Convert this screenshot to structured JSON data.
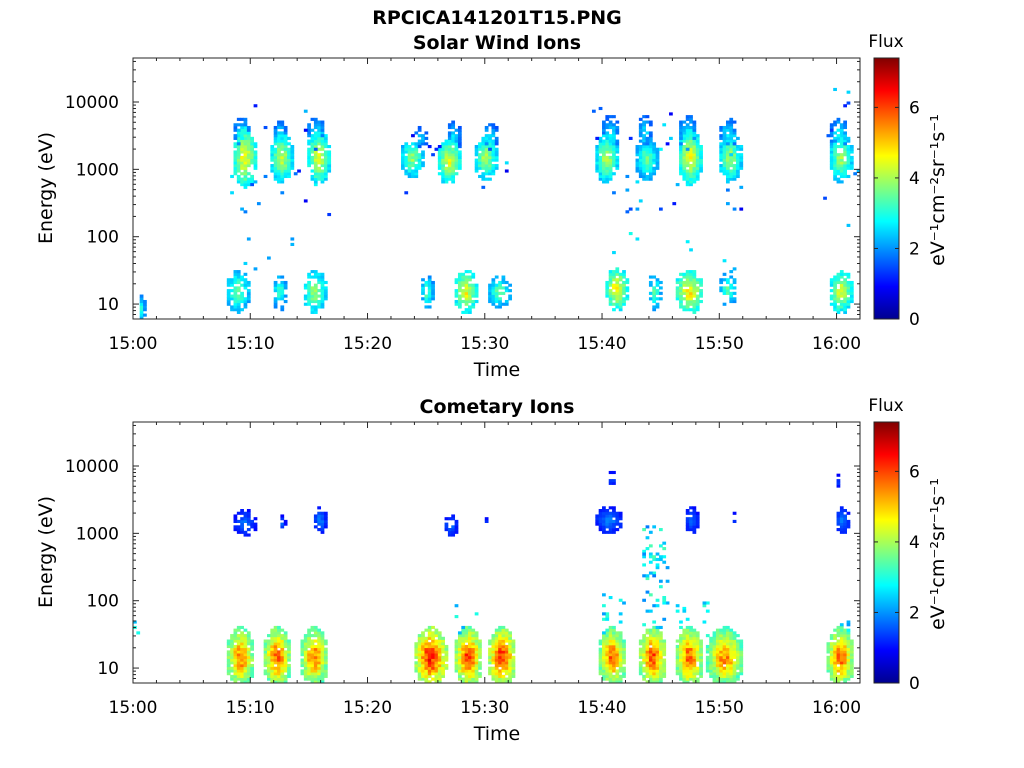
{
  "figure": {
    "main_title": "RPCICA141201T15.PNG"
  },
  "chart_data": [
    {
      "type": "heatmap",
      "title": "Solar Wind Ions",
      "xlabel": "Time",
      "ylabel": "Energy (eV)",
      "x_ticks": [
        "15:00",
        "15:10",
        "15:20",
        "15:30",
        "15:40",
        "15:50",
        "16:00"
      ],
      "x_range_minutes": [
        0,
        62
      ],
      "y_scale": "log",
      "y_ticks": [
        "10",
        "100",
        "1000",
        "10000"
      ],
      "y_range": [
        6,
        45000
      ],
      "colorbar": {
        "label": "Flux",
        "unit": "eV⁻¹cm⁻²sr⁻¹s⁻¹",
        "ticks": [
          "0",
          "2",
          "4",
          "6"
        ],
        "range": [
          0,
          7.4
        ],
        "colormap": "jet"
      },
      "blobs": [
        {
          "t": 9.4,
          "e": 1500,
          "w": 0.5,
          "de": 0.22,
          "v": 4.6,
          "d": 0.85
        },
        {
          "t": 9.2,
          "e": 3200,
          "w": 0.4,
          "de": 0.12,
          "v": 2.8,
          "d": 0.7
        },
        {
          "t": 12.6,
          "e": 1550,
          "w": 0.5,
          "de": 0.18,
          "v": 4.1,
          "d": 0.85
        },
        {
          "t": 12.4,
          "e": 3400,
          "w": 0.3,
          "de": 0.1,
          "v": 2.7,
          "d": 0.7
        },
        {
          "t": 15.8,
          "e": 1500,
          "w": 0.5,
          "de": 0.2,
          "v": 4.3,
          "d": 0.85
        },
        {
          "t": 15.6,
          "e": 3300,
          "w": 0.4,
          "de": 0.12,
          "v": 2.8,
          "d": 0.7
        },
        {
          "t": 23.8,
          "e": 1400,
          "w": 0.5,
          "de": 0.14,
          "v": 3.8,
          "d": 0.85
        },
        {
          "t": 24.5,
          "e": 3000,
          "w": 0.3,
          "de": 0.08,
          "v": 2.5,
          "d": 0.5
        },
        {
          "t": 27.0,
          "e": 1400,
          "w": 0.5,
          "de": 0.16,
          "v": 4.4,
          "d": 0.85
        },
        {
          "t": 27.5,
          "e": 3000,
          "w": 0.3,
          "de": 0.12,
          "v": 2.6,
          "d": 0.6
        },
        {
          "t": 30.2,
          "e": 1450,
          "w": 0.5,
          "de": 0.16,
          "v": 4.0,
          "d": 0.85
        },
        {
          "t": 30.5,
          "e": 3100,
          "w": 0.4,
          "de": 0.1,
          "v": 2.6,
          "d": 0.6
        },
        {
          "t": 40.5,
          "e": 1450,
          "w": 0.5,
          "de": 0.18,
          "v": 4.0,
          "d": 0.85
        },
        {
          "t": 40.6,
          "e": 3400,
          "w": 0.4,
          "de": 0.14,
          "v": 2.7,
          "d": 0.75
        },
        {
          "t": 43.9,
          "e": 1500,
          "w": 0.5,
          "de": 0.16,
          "v": 3.5,
          "d": 0.85
        },
        {
          "t": 43.8,
          "e": 3600,
          "w": 0.3,
          "de": 0.12,
          "v": 2.6,
          "d": 0.7
        },
        {
          "t": 47.5,
          "e": 1450,
          "w": 0.5,
          "de": 0.2,
          "v": 4.5,
          "d": 0.85
        },
        {
          "t": 47.3,
          "e": 3400,
          "w": 0.4,
          "de": 0.14,
          "v": 2.8,
          "d": 0.75
        },
        {
          "t": 50.9,
          "e": 1500,
          "w": 0.5,
          "de": 0.18,
          "v": 3.9,
          "d": 0.85
        },
        {
          "t": 50.7,
          "e": 3400,
          "w": 0.4,
          "de": 0.12,
          "v": 2.7,
          "d": 0.7
        },
        {
          "t": 60.4,
          "e": 1500,
          "w": 0.5,
          "de": 0.18,
          "v": 3.9,
          "d": 0.85
        },
        {
          "t": 60.3,
          "e": 3400,
          "w": 0.4,
          "de": 0.12,
          "v": 2.8,
          "d": 0.7
        },
        {
          "t": 9.0,
          "e": 16,
          "w": 0.5,
          "de": 0.16,
          "v": 3.6,
          "d": 0.7
        },
        {
          "t": 12.4,
          "e": 16,
          "w": 0.3,
          "de": 0.14,
          "v": 3.3,
          "d": 0.6
        },
        {
          "t": 15.5,
          "e": 16,
          "w": 0.5,
          "de": 0.16,
          "v": 3.9,
          "d": 0.7
        },
        {
          "t": 25.2,
          "e": 15,
          "w": 0.3,
          "de": 0.12,
          "v": 3.3,
          "d": 0.6
        },
        {
          "t": 28.3,
          "e": 16,
          "w": 0.5,
          "de": 0.16,
          "v": 4.5,
          "d": 0.75
        },
        {
          "t": 31.3,
          "e": 15,
          "w": 0.5,
          "de": 0.12,
          "v": 3.4,
          "d": 0.6
        },
        {
          "t": 41.2,
          "e": 17,
          "w": 0.5,
          "de": 0.16,
          "v": 4.6,
          "d": 0.75
        },
        {
          "t": 44.5,
          "e": 16,
          "w": 0.3,
          "de": 0.14,
          "v": 3.3,
          "d": 0.6
        },
        {
          "t": 47.6,
          "e": 16,
          "w": 0.6,
          "de": 0.16,
          "v": 4.7,
          "d": 0.75
        },
        {
          "t": 50.7,
          "e": 16,
          "w": 0.4,
          "de": 0.12,
          "v": 3.4,
          "d": 0.6
        },
        {
          "t": 60.3,
          "e": 16,
          "w": 0.5,
          "de": 0.16,
          "v": 4.3,
          "d": 0.75
        },
        {
          "t": 0.8,
          "e": 9,
          "w": 0.15,
          "de": 0.1,
          "v": 3.0,
          "d": 0.8
        }
      ],
      "scatter": [
        {
          "t_range": [
            8,
            17
          ],
          "e_range": [
            200,
            9000
          ],
          "count": 28,
          "v_range": [
            0.8,
            2.8
          ],
          "seed": 11
        },
        {
          "t_range": [
            39,
            52
          ],
          "e_range": [
            200,
            9000
          ],
          "count": 34,
          "v_range": [
            0.8,
            2.8
          ],
          "seed": 23
        },
        {
          "t_range": [
            23,
            32
          ],
          "e_range": [
            400,
            6000
          ],
          "count": 14,
          "v_range": [
            0.8,
            2.6
          ],
          "seed": 37
        },
        {
          "t_range": [
            59,
            62
          ],
          "e_range": [
            150,
            15000
          ],
          "count": 10,
          "v_range": [
            0.8,
            2.6
          ],
          "seed": 41
        },
        {
          "t_range": [
            8,
            17
          ],
          "e_range": [
            30,
            120
          ],
          "count": 6,
          "v_range": [
            2.0,
            3.0
          ],
          "seed": 53
        },
        {
          "t_range": [
            40,
            52
          ],
          "e_range": [
            30,
            120
          ],
          "count": 8,
          "v_range": [
            2.0,
            3.0
          ],
          "seed": 61
        }
      ]
    },
    {
      "type": "heatmap",
      "title": "Cometary Ions",
      "xlabel": "Time",
      "ylabel": "Energy (eV)",
      "x_ticks": [
        "15:00",
        "15:10",
        "15:20",
        "15:30",
        "15:40",
        "15:50",
        "16:00"
      ],
      "x_range_minutes": [
        0,
        62
      ],
      "y_scale": "log",
      "y_ticks": [
        "10",
        "100",
        "1000",
        "10000"
      ],
      "y_range": [
        6,
        45000
      ],
      "colorbar": {
        "label": "Flux",
        "unit": "eV⁻¹cm⁻²sr⁻¹s⁻¹",
        "ticks": [
          "0",
          "2",
          "4",
          "6"
        ],
        "range": [
          0,
          7.4
        ],
        "colormap": "jet"
      },
      "blobs": [
        {
          "t": 9.2,
          "e": 14,
          "w": 0.6,
          "de": 0.22,
          "v": 5.6,
          "d": 0.9
        },
        {
          "t": 12.3,
          "e": 14,
          "w": 0.6,
          "de": 0.22,
          "v": 5.8,
          "d": 0.9
        },
        {
          "t": 15.4,
          "e": 14,
          "w": 0.6,
          "de": 0.22,
          "v": 5.6,
          "d": 0.9
        },
        {
          "t": 25.3,
          "e": 14,
          "w": 0.7,
          "de": 0.22,
          "v": 6.3,
          "d": 0.9
        },
        {
          "t": 28.5,
          "e": 14,
          "w": 0.6,
          "de": 0.22,
          "v": 6.0,
          "d": 0.9
        },
        {
          "t": 31.6,
          "e": 14,
          "w": 0.6,
          "de": 0.22,
          "v": 6.1,
          "d": 0.9
        },
        {
          "t": 40.9,
          "e": 14,
          "w": 0.6,
          "de": 0.22,
          "v": 5.7,
          "d": 0.9
        },
        {
          "t": 44.3,
          "e": 14,
          "w": 0.6,
          "de": 0.22,
          "v": 5.9,
          "d": 0.9
        },
        {
          "t": 47.5,
          "e": 14,
          "w": 0.6,
          "de": 0.22,
          "v": 5.8,
          "d": 0.9
        },
        {
          "t": 50.5,
          "e": 14,
          "w": 0.8,
          "de": 0.22,
          "v": 5.5,
          "d": 0.9
        },
        {
          "t": 60.3,
          "e": 14,
          "w": 0.6,
          "de": 0.22,
          "v": 5.7,
          "d": 0.9
        },
        {
          "t": 9.5,
          "e": 1500,
          "w": 0.5,
          "de": 0.1,
          "v": 1.7,
          "d": 0.75
        },
        {
          "t": 12.8,
          "e": 1400,
          "w": 0.15,
          "de": 0.06,
          "v": 1.6,
          "d": 0.5
        },
        {
          "t": 15.9,
          "e": 1550,
          "w": 0.3,
          "de": 0.1,
          "v": 1.8,
          "d": 0.75
        },
        {
          "t": 27.2,
          "e": 1300,
          "w": 0.3,
          "de": 0.08,
          "v": 1.7,
          "d": 0.6
        },
        {
          "t": 30.0,
          "e": 1300,
          "w": 0.1,
          "de": 0.05,
          "v": 1.6,
          "d": 0.5
        },
        {
          "t": 40.7,
          "e": 1550,
          "w": 0.6,
          "de": 0.1,
          "v": 1.8,
          "d": 0.8
        },
        {
          "t": 47.8,
          "e": 1650,
          "w": 0.3,
          "de": 0.1,
          "v": 1.7,
          "d": 0.75
        },
        {
          "t": 51.2,
          "e": 1600,
          "w": 0.1,
          "de": 0.05,
          "v": 1.6,
          "d": 0.5
        },
        {
          "t": 60.5,
          "e": 1550,
          "w": 0.3,
          "de": 0.1,
          "v": 1.8,
          "d": 0.75
        },
        {
          "t": 40.9,
          "e": 6500,
          "w": 0.2,
          "de": 0.06,
          "v": 1.5,
          "d": 0.6
        },
        {
          "t": 60.2,
          "e": 6000,
          "w": 0.1,
          "de": 0.05,
          "v": 1.5,
          "d": 0.5
        }
      ],
      "scatter": [
        {
          "t_range": [
            43.5,
            45.5
          ],
          "e_range": [
            40,
            1300
          ],
          "count": 60,
          "v_range": [
            1.8,
            3.4
          ],
          "seed": 71
        },
        {
          "t_range": [
            40,
            42
          ],
          "e_range": [
            30,
            150
          ],
          "count": 18,
          "v_range": [
            2.0,
            3.2
          ],
          "seed": 79
        },
        {
          "t_range": [
            46,
            50
          ],
          "e_range": [
            30,
            100
          ],
          "count": 14,
          "v_range": [
            2.0,
            3.2
          ],
          "seed": 83
        },
        {
          "t_range": [
            59.5,
            61
          ],
          "e_range": [
            30,
            60
          ],
          "count": 8,
          "v_range": [
            2.0,
            3.2
          ],
          "seed": 89
        },
        {
          "t_range": [
            27,
            30
          ],
          "e_range": [
            30,
            110
          ],
          "count": 6,
          "v_range": [
            2.0,
            3.2
          ],
          "seed": 97
        },
        {
          "t_range": [
            0,
            0.6
          ],
          "e_range": [
            30,
            60
          ],
          "count": 3,
          "v_range": [
            2.2,
            3.0
          ],
          "seed": 101
        }
      ]
    }
  ]
}
